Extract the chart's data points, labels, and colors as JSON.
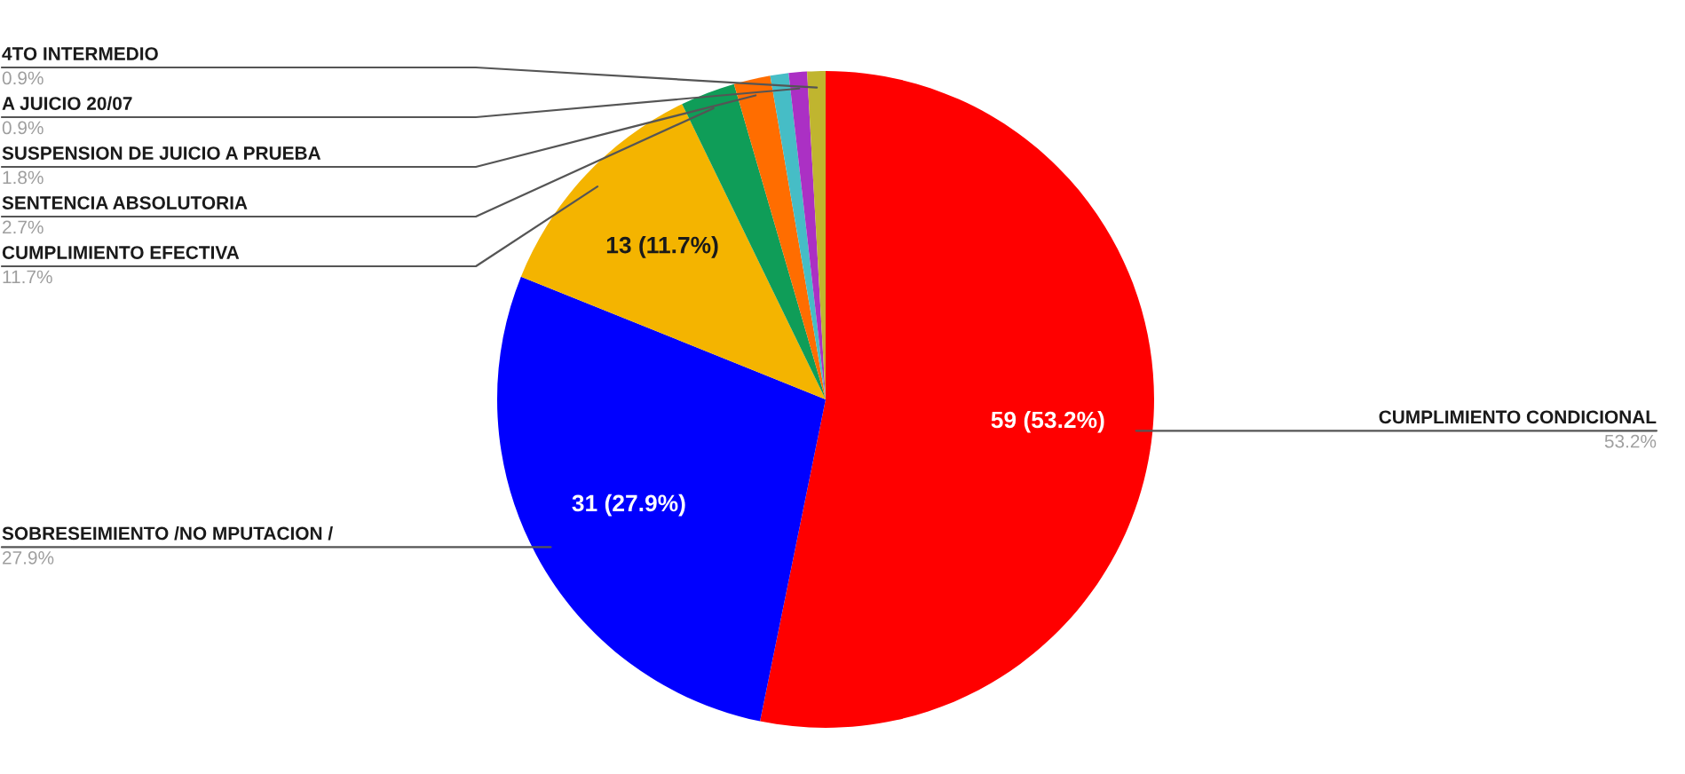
{
  "chart_data": {
    "type": "pie",
    "categories": [
      "CUMPLIMIENTO CONDICIONAL",
      "SOBRESEIMIENTO /NO MPUTACION /",
      "CUMPLIMIENTO EFECTIVA",
      "SENTENCIA ABSOLUTORIA",
      "SUSPENSION DE JUICIO A PRUEBA",
      null,
      "A JUICIO 20/07",
      "4TO INTERMEDIO"
    ],
    "values": [
      53.2,
      27.9,
      11.7,
      2.7,
      1.8,
      0.9,
      0.9,
      0.9
    ],
    "colors": [
      "#ff0000",
      "#0000ff",
      "#f4b400",
      "#0f9d58",
      "#ff6d00",
      "#46bdc6",
      "#ab30c4",
      "#c0b52f"
    ],
    "value_labels": [
      "53.2%",
      "27.9%",
      "11.7%",
      "2.7%",
      "1.8%",
      null,
      "0.9%",
      "0.9%"
    ],
    "annotations": [
      {
        "text": "59 (53.2%)",
        "x": "CUMPLIMIENTO CONDICIONAL"
      },
      {
        "text": "31 (27.9%)",
        "x": "SOBRESEIMIENTO /NO MPUTACION /"
      },
      {
        "text": "13 (11.7%)",
        "x": "CUMPLIMIENTO EFECTIVA"
      }
    ]
  }
}
